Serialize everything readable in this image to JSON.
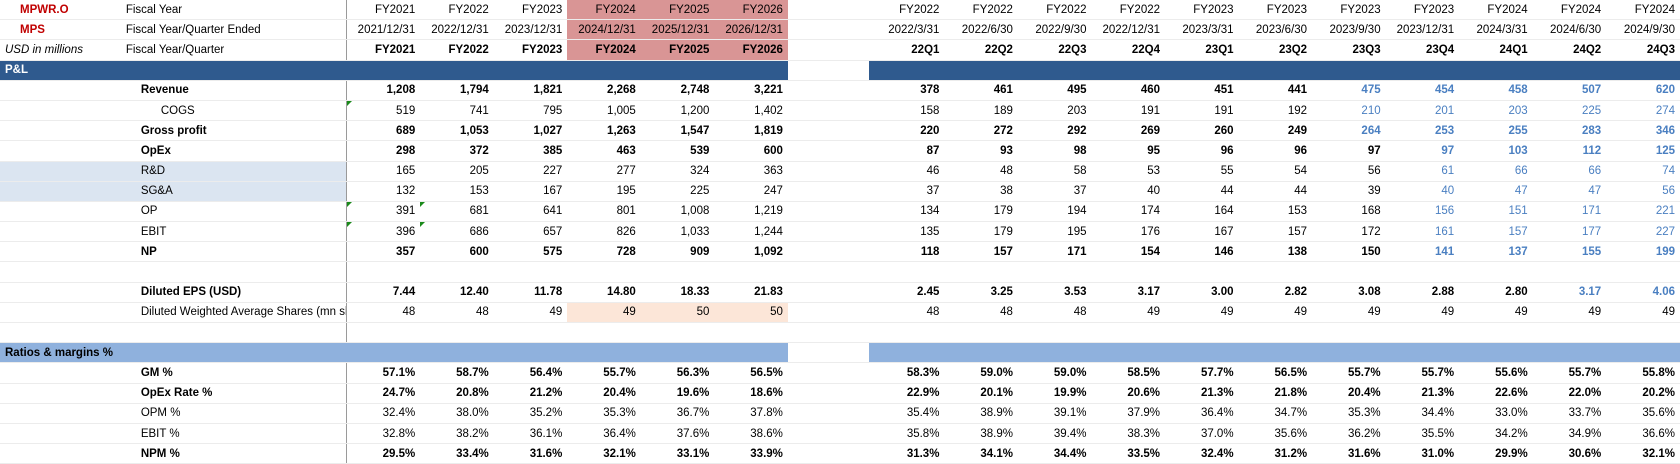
{
  "header": {
    "r1": {
      "c0": "MPWR.O",
      "c1": "Fiscal Year",
      "fy": [
        "FY2021",
        "FY2022",
        "FY2023",
        "FY2024",
        "FY2025",
        "FY2026"
      ],
      "q": [
        "FY2022",
        "FY2022",
        "FY2022",
        "FY2022",
        "FY2023",
        "FY2023",
        "FY2023",
        "FY2023",
        "FY2024",
        "FY2024",
        "FY2024"
      ]
    },
    "r2": {
      "c0": "MPS",
      "c1": "Fiscal Year/Quarter Ended",
      "fy": [
        "2021/12/31",
        "2022/12/31",
        "2023/12/31",
        "2024/12/31",
        "2025/12/31",
        "2026/12/31"
      ],
      "q": [
        "2022/3/31",
        "2022/6/30",
        "2022/9/30",
        "2022/12/31",
        "2023/3/31",
        "2023/6/30",
        "2023/9/30",
        "2023/12/31",
        "2024/3/31",
        "2024/6/30",
        "2024/9/30"
      ]
    },
    "r3": {
      "c0": "USD in millions",
      "c1": "Fiscal Year/Quarter",
      "fy": [
        "FY2021",
        "FY2022",
        "FY2023",
        "FY2024",
        "FY2025",
        "FY2026"
      ],
      "q": [
        "22Q1",
        "22Q2",
        "22Q3",
        "22Q4",
        "23Q1",
        "23Q2",
        "23Q3",
        "23Q4",
        "24Q1",
        "24Q2",
        "24Q3"
      ]
    }
  },
  "sections": {
    "pl": "P&L",
    "ratios": "Ratios & margins %"
  },
  "rows": {
    "revenue": {
      "label": "Revenue",
      "fy": [
        "1,208",
        "1,794",
        "1,821",
        "2,268",
        "2,748",
        "3,221"
      ],
      "q": [
        "378",
        "461",
        "495",
        "460",
        "451",
        "441",
        "475",
        "454",
        "458",
        "507",
        "620"
      ]
    },
    "cogs": {
      "label": "COGS",
      "fy": [
        "519",
        "741",
        "795",
        "1,005",
        "1,200",
        "1,402"
      ],
      "q": [
        "158",
        "189",
        "203",
        "191",
        "191",
        "192",
        "210",
        "201",
        "203",
        "225",
        "274"
      ]
    },
    "gross": {
      "label": "Gross profit",
      "fy": [
        "689",
        "1,053",
        "1,027",
        "1,263",
        "1,547",
        "1,819"
      ],
      "q": [
        "220",
        "272",
        "292",
        "269",
        "260",
        "249",
        "264",
        "253",
        "255",
        "283",
        "346"
      ]
    },
    "opex": {
      "label": "OpEx",
      "fy": [
        "298",
        "372",
        "385",
        "463",
        "539",
        "600"
      ],
      "q": [
        "87",
        "93",
        "98",
        "95",
        "96",
        "96",
        "97",
        "97",
        "103",
        "112",
        "125"
      ]
    },
    "rd": {
      "label": "R&D",
      "fy": [
        "165",
        "205",
        "227",
        "277",
        "324",
        "363"
      ],
      "q": [
        "46",
        "48",
        "58",
        "53",
        "55",
        "54",
        "56",
        "61",
        "66",
        "66",
        "74"
      ]
    },
    "sga": {
      "label": "SG&A",
      "fy": [
        "132",
        "153",
        "167",
        "195",
        "225",
        "247"
      ],
      "q": [
        "37",
        "38",
        "37",
        "40",
        "44",
        "44",
        "39",
        "40",
        "47",
        "47",
        "56"
      ]
    },
    "op": {
      "label": "OP",
      "fy": [
        "391",
        "681",
        "641",
        "801",
        "1,008",
        "1,219"
      ],
      "q": [
        "134",
        "179",
        "194",
        "174",
        "164",
        "153",
        "168",
        "156",
        "151",
        "171",
        "221"
      ]
    },
    "ebit": {
      "label": "EBIT",
      "fy": [
        "396",
        "686",
        "657",
        "826",
        "1,033",
        "1,244"
      ],
      "q": [
        "135",
        "179",
        "195",
        "176",
        "167",
        "157",
        "172",
        "161",
        "157",
        "177",
        "227"
      ]
    },
    "np": {
      "label": "NP",
      "fy": [
        "357",
        "600",
        "575",
        "728",
        "909",
        "1,092"
      ],
      "q": [
        "118",
        "157",
        "171",
        "154",
        "146",
        "138",
        "150",
        "141",
        "137",
        "155",
        "199"
      ]
    },
    "eps": {
      "label": "Diluted EPS (USD)",
      "fy": [
        "7.44",
        "12.40",
        "11.78",
        "14.80",
        "18.33",
        "21.83"
      ],
      "q": [
        "2.45",
        "3.25",
        "3.53",
        "3.17",
        "3.00",
        "2.82",
        "3.08",
        "2.88",
        "2.80",
        "3.17",
        "4.06"
      ]
    },
    "shares": {
      "label": "Diluted Weighted Average Shares (mn shares)",
      "fy": [
        "48",
        "48",
        "49",
        "49",
        "50",
        "50"
      ],
      "q": [
        "48",
        "48",
        "48",
        "49",
        "49",
        "49",
        "49",
        "49",
        "49",
        "49",
        "49"
      ]
    },
    "gm": {
      "label": "GM %",
      "fy": [
        "57.1%",
        "58.7%",
        "56.4%",
        "55.7%",
        "56.3%",
        "56.5%"
      ],
      "q": [
        "58.3%",
        "59.0%",
        "59.0%",
        "58.5%",
        "57.7%",
        "56.5%",
        "55.7%",
        "55.7%",
        "55.6%",
        "55.7%",
        "55.8%"
      ]
    },
    "opexr": {
      "label": "OpEx Rate %",
      "fy": [
        "24.7%",
        "20.8%",
        "21.2%",
        "20.4%",
        "19.6%",
        "18.6%"
      ],
      "q": [
        "22.9%",
        "20.1%",
        "19.9%",
        "20.6%",
        "21.3%",
        "21.8%",
        "20.4%",
        "21.3%",
        "22.6%",
        "22.0%",
        "20.2%"
      ]
    },
    "opm": {
      "label": "OPM %",
      "fy": [
        "32.4%",
        "38.0%",
        "35.2%",
        "35.3%",
        "36.7%",
        "37.8%"
      ],
      "q": [
        "35.4%",
        "38.9%",
        "39.1%",
        "37.9%",
        "36.4%",
        "34.7%",
        "35.3%",
        "34.4%",
        "33.0%",
        "33.7%",
        "35.6%"
      ]
    },
    "ebitp": {
      "label": "EBIT %",
      "fy": [
        "32.8%",
        "38.2%",
        "36.1%",
        "36.4%",
        "37.6%",
        "38.6%"
      ],
      "q": [
        "35.8%",
        "38.9%",
        "39.4%",
        "38.3%",
        "37.0%",
        "35.6%",
        "36.2%",
        "35.5%",
        "34.2%",
        "34.9%",
        "36.6%"
      ]
    },
    "npm": {
      "label": "NPM %",
      "fy": [
        "29.5%",
        "33.4%",
        "31.6%",
        "32.1%",
        "33.1%",
        "33.9%"
      ],
      "q": [
        "31.3%",
        "34.1%",
        "34.4%",
        "33.5%",
        "32.4%",
        "31.2%",
        "31.6%",
        "31.0%",
        "29.9%",
        "30.6%",
        "32.1%"
      ]
    }
  },
  "colors": {
    "ticker": "#c00000",
    "section": "#2f5a8e",
    "ratio_section": "#8fb1dd",
    "highlight_header": "#d99595",
    "estimate_blue": "#4a7fc1"
  }
}
